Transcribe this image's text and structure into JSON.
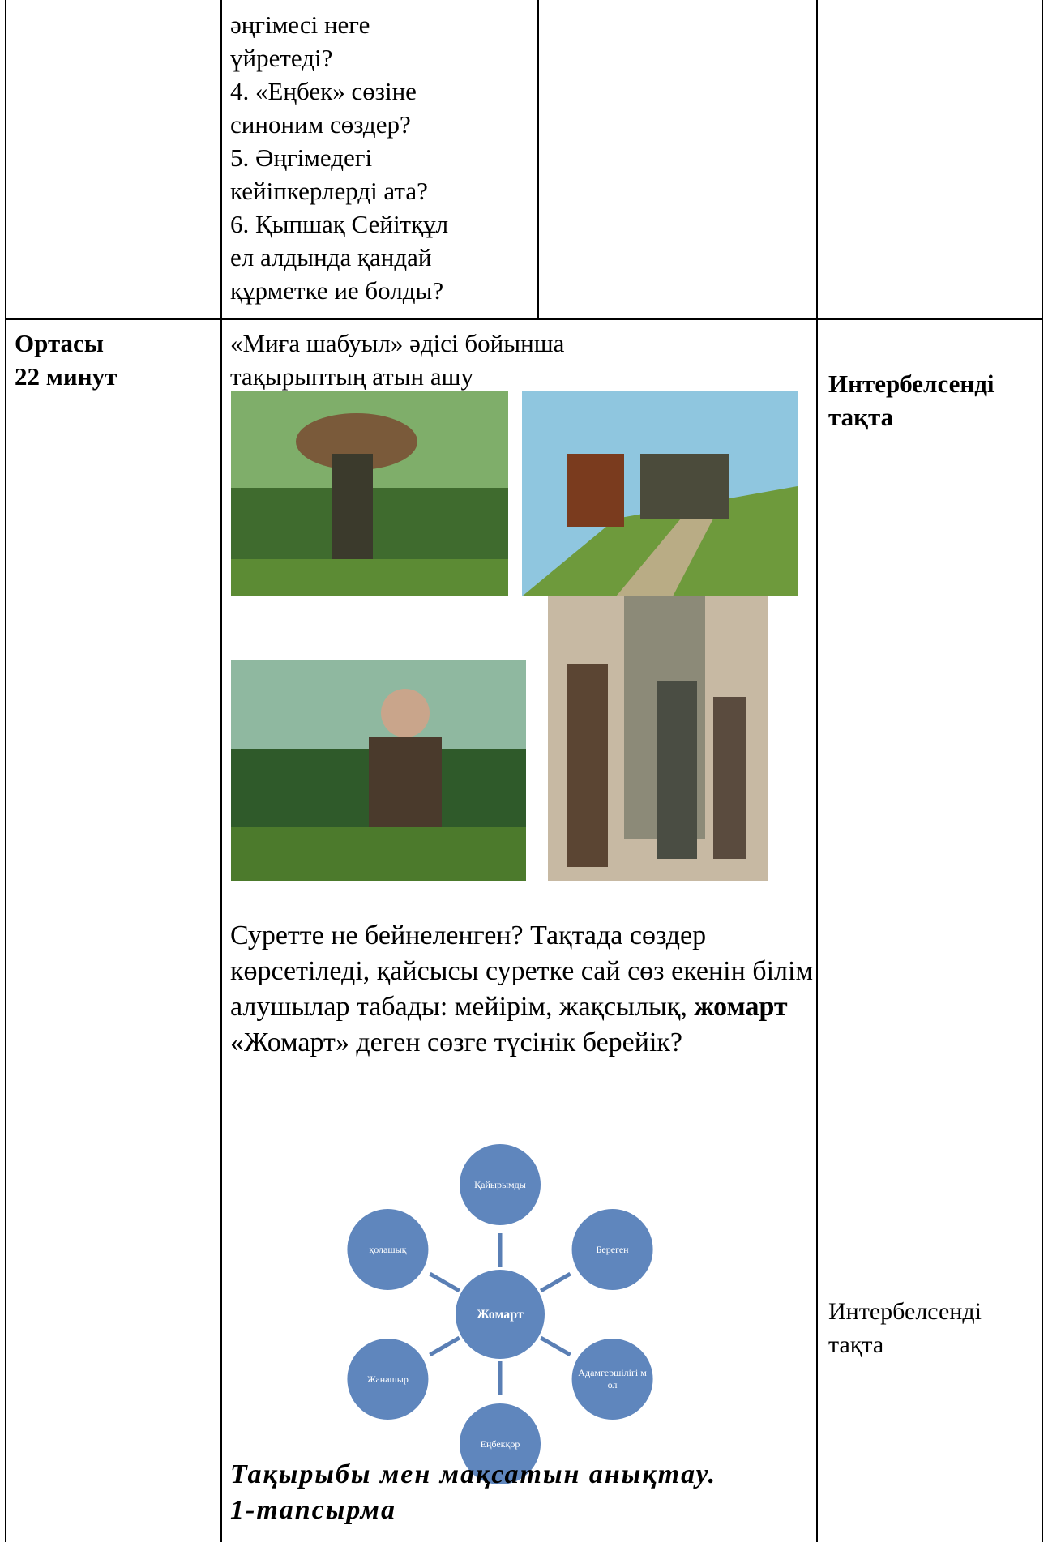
{
  "top_row": {
    "questions": [
      "әңгімесі неге үйретеді?",
      "4. «Еңбек» сөзіне синоним сөздер?",
      "5. Әңгімедегі кейіпкерлерді ата?",
      "6. Қыпшақ Сейітқұл ел алдында қандай құрметке ие болды?"
    ]
  },
  "middle_row": {
    "stage": "Ортасы",
    "duration": "22 минут",
    "method": "«Миға шабуыл» әдісі бойынша тақырыптың атын ашу",
    "resource": "Интербелсенді тақта",
    "question_text": "Суретте не бейнеленген? Тақтада сөздер көрсетіледі, қайсысы суретке сай сөз екенін білім алушылар табады: мейірім, жақсылық, ",
    "question_bold": "жомарт",
    "explain": "«Жомарт» деген сөзге түсінік берейік?",
    "resource2": "Интербелсенді тақта",
    "diagram": {
      "center": "Жомарт",
      "nodes": [
        "Қайырымды",
        "Береген",
        "Адамгершілігі мол",
        "Еңбекқор",
        "Жанашыр",
        "қолашық"
      ]
    },
    "task_title": "Тақырыбы мен мақсатын анықтау.",
    "task_number": "1-тапсырма"
  }
}
